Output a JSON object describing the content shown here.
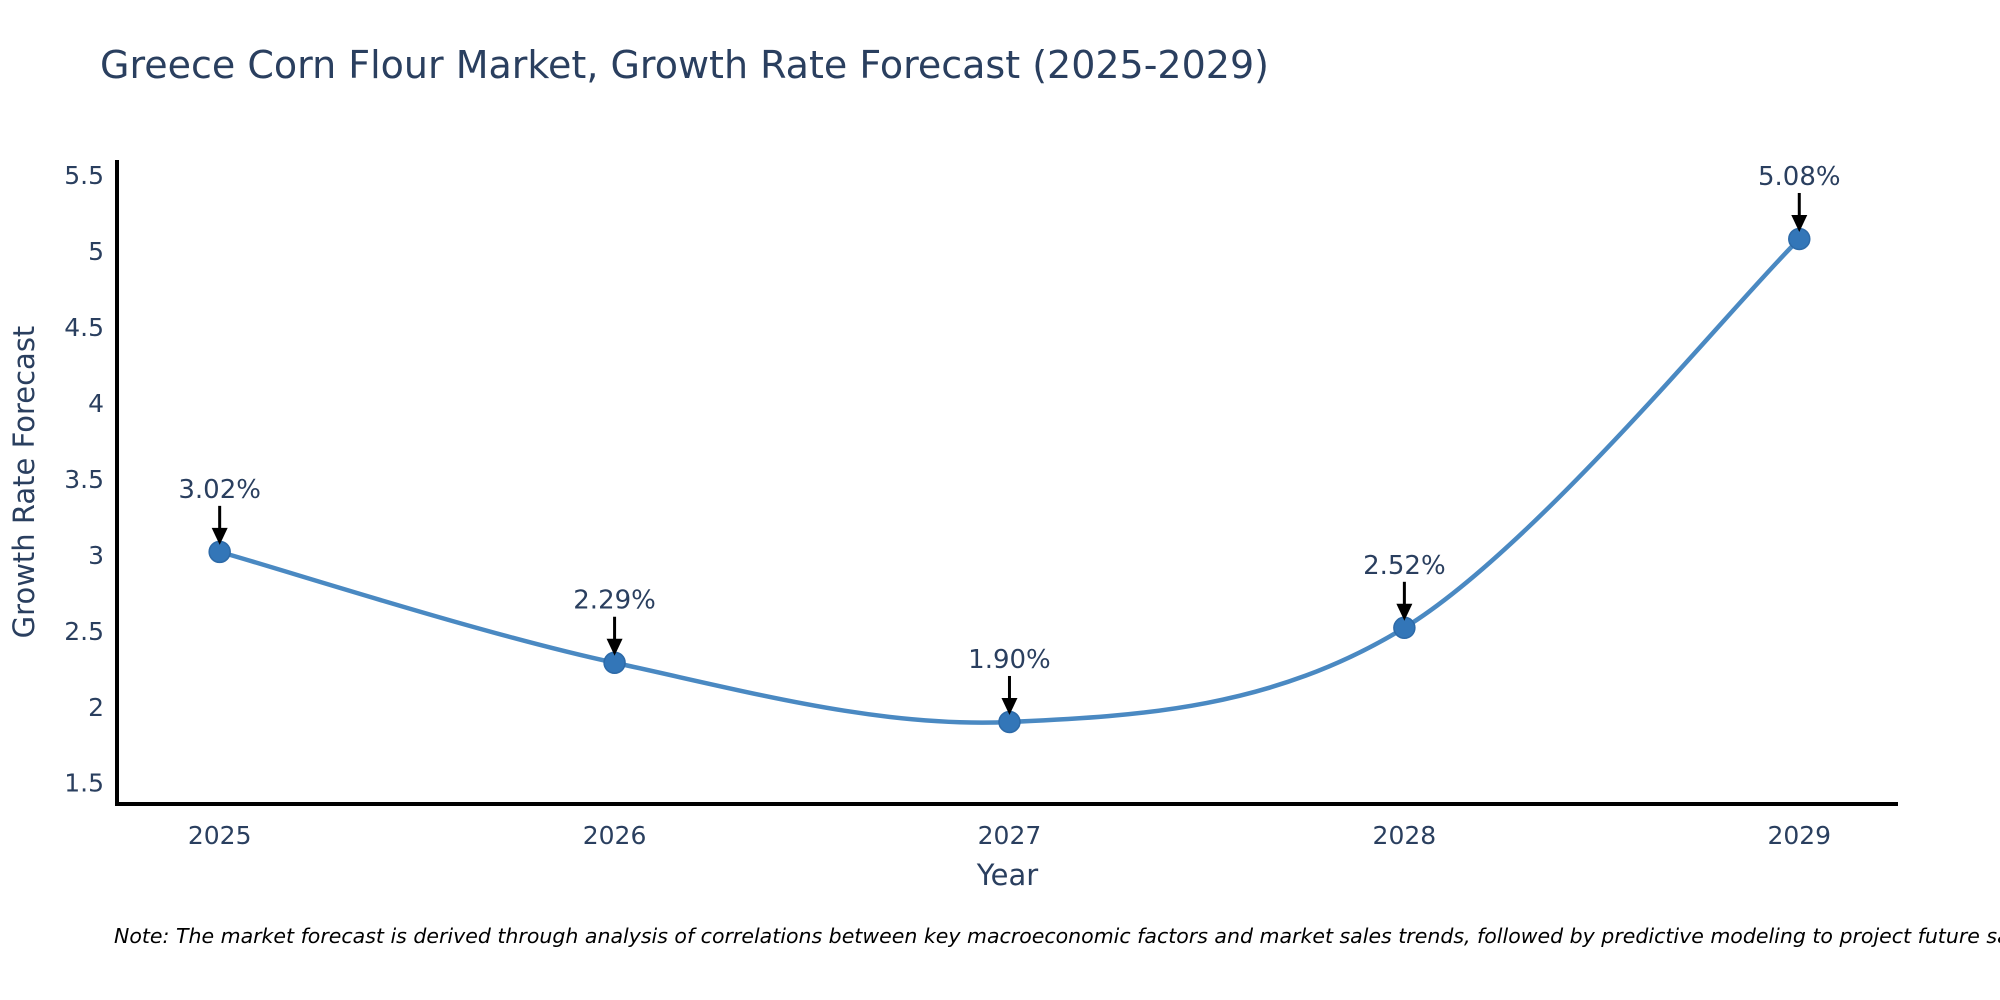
{
  "title": "Greece Corn Flour Market, Growth Rate Forecast (2025-2029)",
  "note": "Note: The market forecast is derived through analysis of correlations between key macroeconomic factors and market sales trends, followed by predictive modeling to project future sales",
  "chart_data": {
    "type": "line",
    "line_shape": "spline",
    "title": "Greece Corn Flour Market, Growth Rate Forecast (2025-2029)",
    "xlabel": "Year",
    "ylabel": "Growth Rate Forecast",
    "x": [
      2025,
      2026,
      2027,
      2028,
      2029
    ],
    "values": [
      3.02,
      2.29,
      1.9,
      2.52,
      5.08
    ],
    "point_labels": [
      "3.02%",
      "2.29%",
      "1.90%",
      "2.52%",
      "5.08%"
    ],
    "x_ticks": [
      "2025",
      "2026",
      "2027",
      "2028",
      "2029"
    ],
    "y_ticks": [
      "1.5",
      "2",
      "2.5",
      "3",
      "3.5",
      "4",
      "4.5",
      "5",
      "5.5"
    ],
    "y_tick_values": [
      1.5,
      2,
      2.5,
      3,
      3.5,
      4,
      4.5,
      5,
      5.5
    ],
    "xlim": [
      2024.74,
      2029.25
    ],
    "ylim": [
      1.36,
      5.6
    ],
    "grid": false,
    "legend": false,
    "annotations_arrow": true,
    "colors": {
      "line": "#4a89c2",
      "marker": "#3376b8",
      "marker_edge": "#2d6aa8",
      "text": "#2a3f5f",
      "axis": "#000000",
      "arrow": "#000000",
      "background": "#ffffff"
    }
  }
}
